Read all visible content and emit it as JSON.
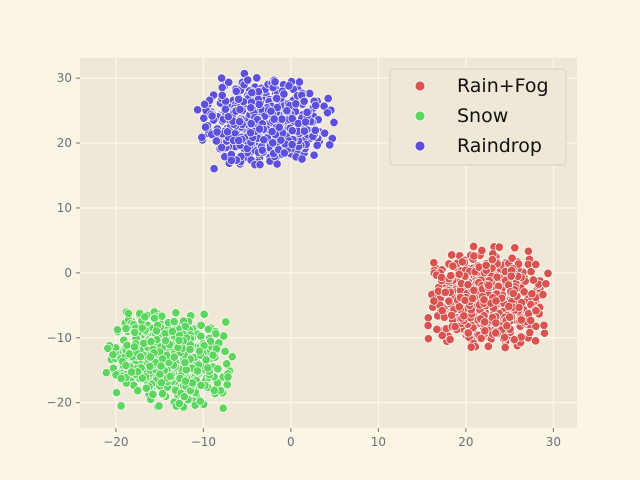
{
  "chart_data": {
    "type": "scatter",
    "title": "",
    "xlabel": "",
    "ylabel": "",
    "xlim": [
      -24.1,
      32.7
    ],
    "ylim": [
      -23.9,
      33.1
    ],
    "xticks": [
      -20,
      -10,
      0,
      10,
      20,
      30
    ],
    "yticks": [
      -20,
      -10,
      0,
      10,
      20,
      30
    ],
    "xtick_labels": [
      "−20",
      "−10",
      "0",
      "10",
      "20",
      "30"
    ],
    "ytick_labels": [
      "−20",
      "−10",
      "0",
      "10",
      "20",
      "30"
    ],
    "grid": true,
    "legend_position": "top-right",
    "series": [
      {
        "name": "Rain+Fog",
        "color": "#d9534f",
        "clusters": [
          {
            "center": [
              22.2,
              -4.3
            ],
            "spread": [
              3.2,
              3.4
            ],
            "range_x": [
              15.5,
              29.5
            ],
            "range_y": [
              -11.5,
              4.6
            ],
            "count": 700
          }
        ]
      },
      {
        "name": "Snow",
        "color": "#5cd65c",
        "clusters": [
          {
            "center": [
              -14.2,
              -13.3
            ],
            "spread": [
              3.0,
              3.3
            ],
            "range_x": [
              -21.5,
              -6.5
            ],
            "range_y": [
              -21.0,
              -5.8
            ],
            "count": 700
          }
        ]
      },
      {
        "name": "Raindrop",
        "color": "#5d50dd",
        "clusters": [
          {
            "center": [
              -3.2,
              23.2
            ],
            "spread": [
              3.2,
              2.8
            ],
            "range_x": [
              -11.0,
              5.0
            ],
            "range_y": [
              15.8,
              31.0
            ],
            "count": 700
          }
        ]
      }
    ]
  }
}
